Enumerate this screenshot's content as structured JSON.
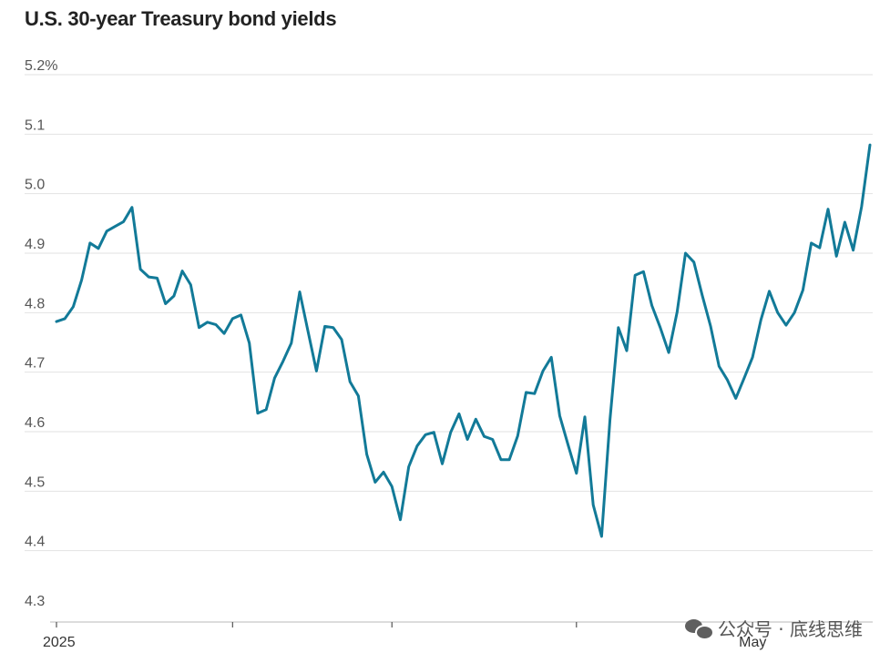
{
  "chart_data": {
    "type": "line",
    "title": "U.S. 30-year Treasury bond yields",
    "xlabel": "",
    "ylabel": "",
    "ylim": [
      4.3,
      5.2
    ],
    "yticks": [
      4.3,
      4.4,
      4.5,
      4.6,
      4.7,
      4.8,
      4.9,
      5.0,
      5.1,
      5.2
    ],
    "ytick_labels": [
      "4.3",
      "4.4",
      "4.5",
      "4.6",
      "4.7",
      "4.8",
      "4.9",
      "5.0",
      "5.1",
      "5.2%"
    ],
    "xtick_labels": [
      {
        "index": 0,
        "label": "2025"
      },
      {
        "index": 21,
        "label": ""
      },
      {
        "index": 40,
        "label": ""
      },
      {
        "index": 62,
        "label": ""
      },
      {
        "index": 83,
        "label": "May"
      }
    ],
    "grid": true,
    "series": [
      {
        "color": "#127a98",
        "values": [
          4.785,
          4.79,
          4.81,
          4.855,
          4.917,
          4.908,
          4.937,
          4.945,
          4.953,
          4.977,
          4.873,
          4.86,
          4.858,
          4.815,
          4.828,
          4.87,
          4.847,
          4.775,
          4.784,
          4.78,
          4.765,
          4.79,
          4.796,
          4.749,
          4.631,
          4.637,
          4.69,
          4.718,
          4.749,
          4.835,
          4.768,
          4.702,
          4.777,
          4.775,
          4.755,
          4.684,
          4.66,
          4.562,
          4.515,
          4.532,
          4.508,
          4.452,
          4.541,
          4.576,
          4.595,
          4.599,
          4.546,
          4.599,
          4.63,
          4.587,
          4.621,
          4.592,
          4.587,
          4.553,
          4.553,
          4.593,
          4.666,
          4.664,
          4.702,
          4.725,
          4.627,
          4.578,
          4.53,
          4.625,
          4.477,
          4.424,
          4.62,
          4.775,
          4.736,
          4.863,
          4.869,
          4.812,
          4.775,
          4.733,
          4.801,
          4.9,
          4.885,
          4.829,
          4.777,
          4.71,
          4.687,
          4.656,
          4.69,
          4.725,
          4.788,
          4.836,
          4.8,
          4.779,
          4.8,
          4.838,
          4.917,
          4.909,
          4.974,
          4.895,
          4.952,
          4.905,
          4.978,
          5.082
        ]
      }
    ]
  },
  "watermark": {
    "icon": "wechat-icon",
    "text": "公众号 · 底线思维"
  }
}
